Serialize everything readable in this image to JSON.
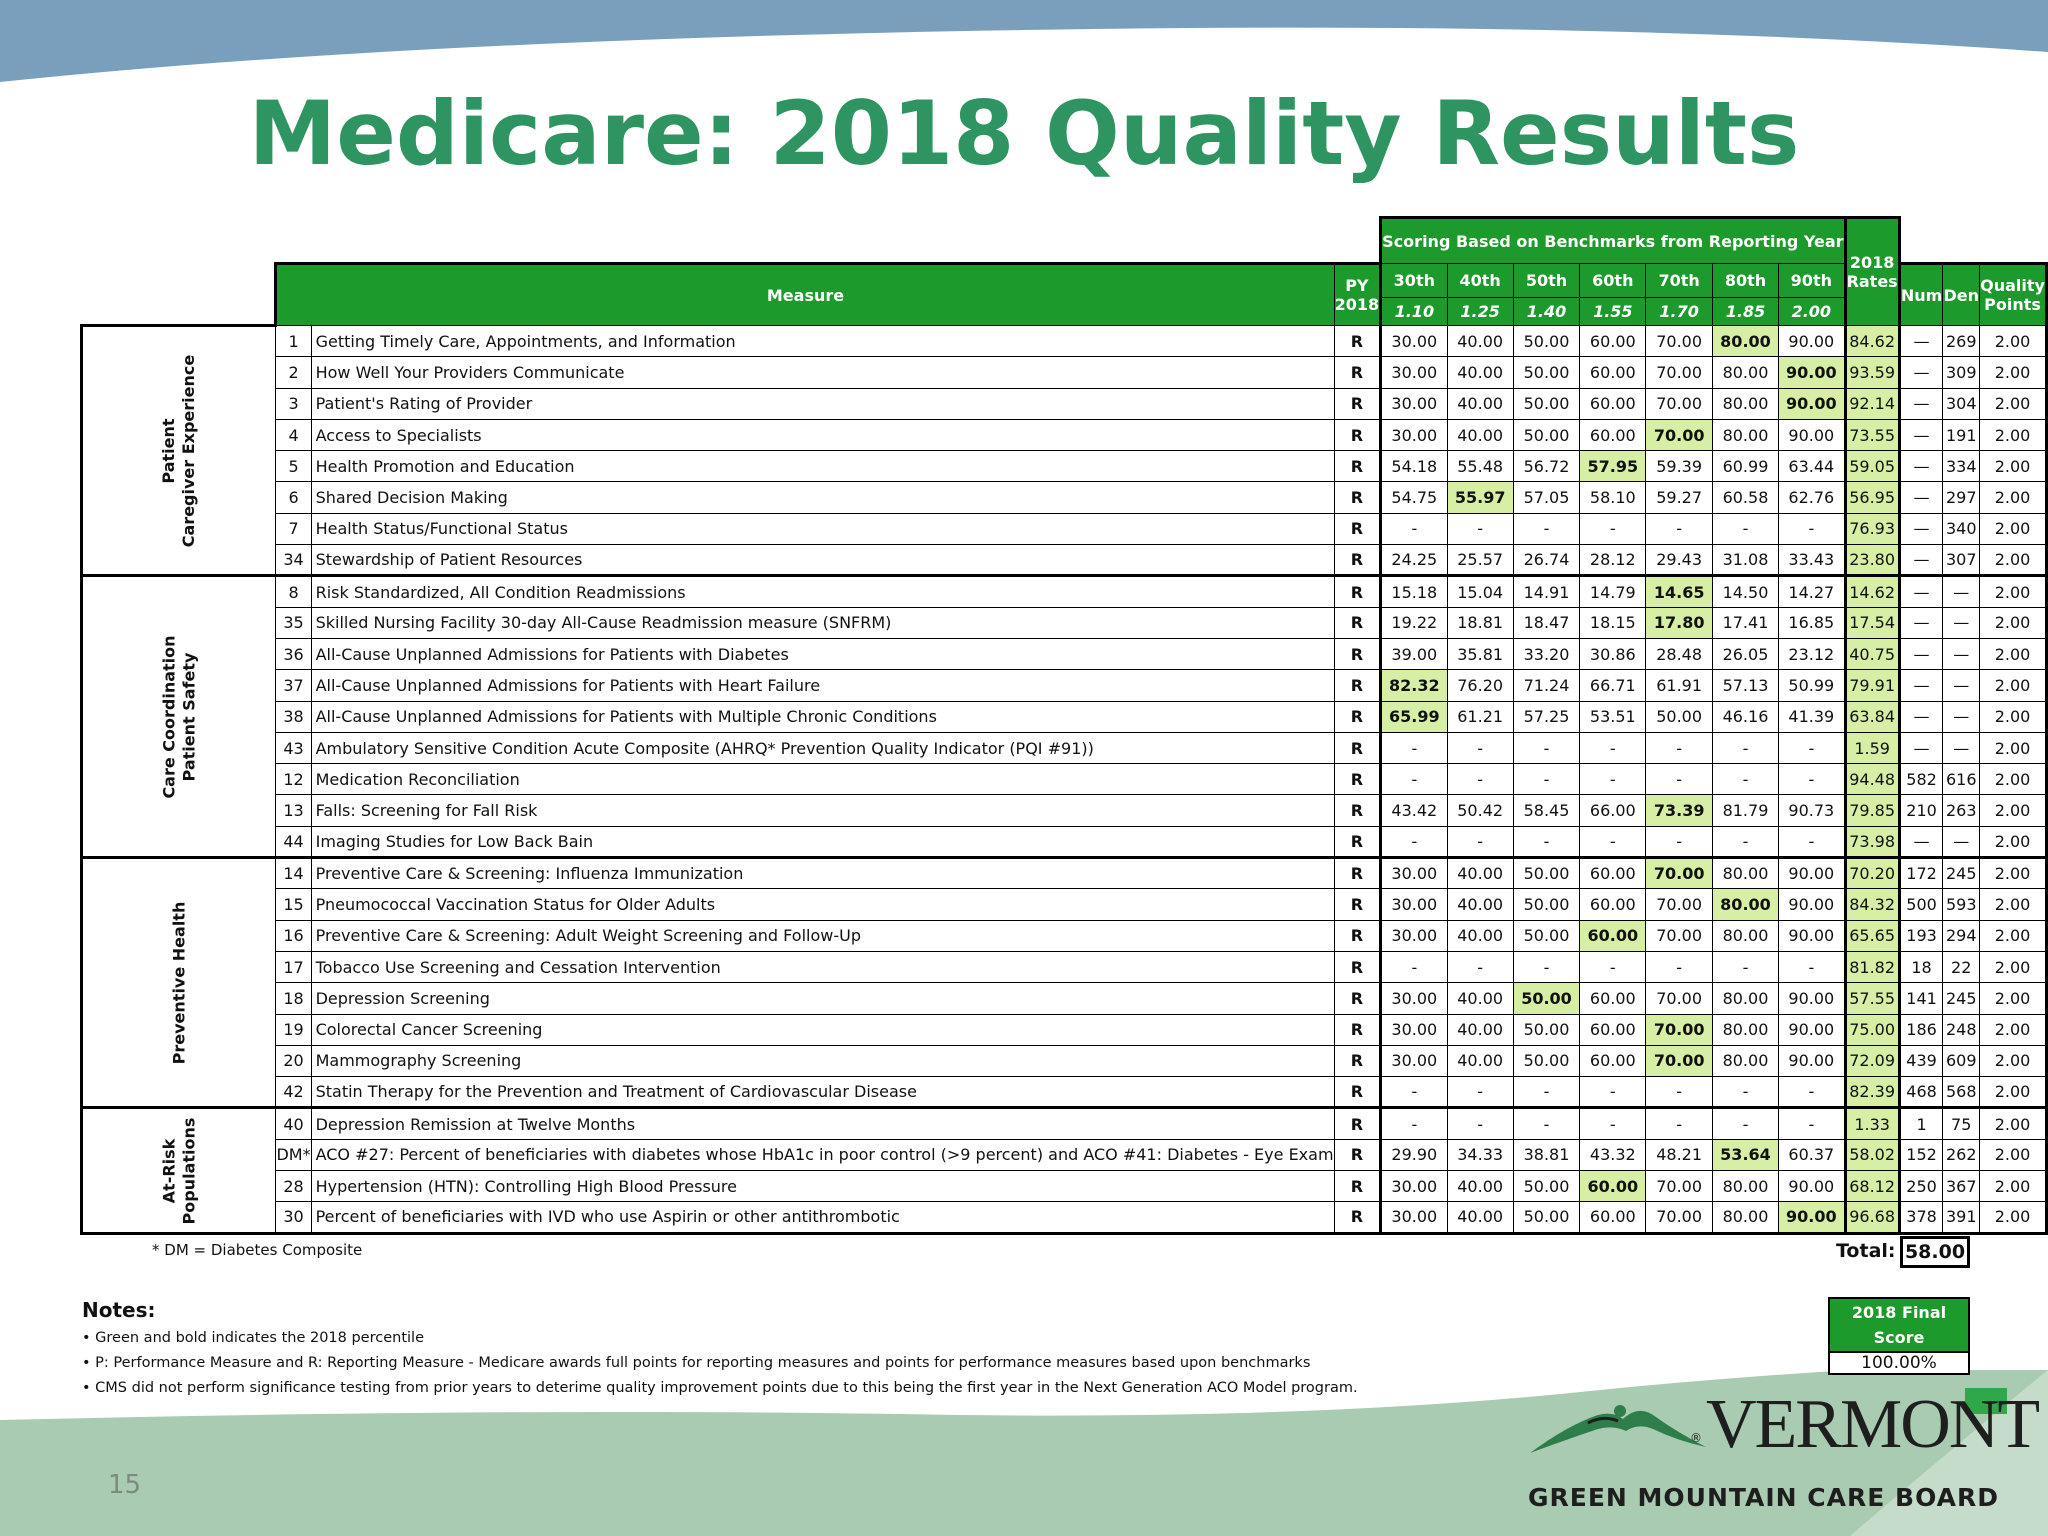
{
  "slide": {
    "title": "Medicare: 2018 Quality Results",
    "page_number": "15"
  },
  "table": {
    "headers": {
      "measure": "Measure",
      "py_line1": "PY",
      "py_line2": "2018",
      "scoring_group": "Scoring Based on Benchmarks from Reporting Year",
      "percentiles": [
        "30th",
        "40th",
        "50th",
        "60th",
        "70th",
        "80th",
        "90th"
      ],
      "points": [
        "1.10",
        "1.25",
        "1.40",
        "1.55",
        "1.70",
        "1.85",
        "2.00"
      ],
      "rates_line1": "2018",
      "rates_line2": "Rates",
      "num": "Num",
      "den": "Den",
      "qp_line1": "Quality",
      "qp_line2": "Points"
    },
    "categories": {
      "patient_line1": "Patient",
      "patient_line2": "Caregiver Experience",
      "care_line1": "Care Coordination",
      "care_line2": "Patient Safety",
      "preventive": "Preventive Health",
      "atrisk_line1": "At-Risk",
      "atrisk_line2": "Populations"
    },
    "rows": [
      {
        "num": "1",
        "name": "Getting Timely Care, Appointments, and Information",
        "py": "R",
        "bench": [
          "30.00",
          "40.00",
          "50.00",
          "60.00",
          "70.00",
          "80.00",
          "90.00"
        ],
        "hl": 5,
        "rate": "84.62",
        "n": "—",
        "d": "269",
        "qp": "2.00"
      },
      {
        "num": "2",
        "name": "How Well Your Providers Communicate",
        "py": "R",
        "bench": [
          "30.00",
          "40.00",
          "50.00",
          "60.00",
          "70.00",
          "80.00",
          "90.00"
        ],
        "hl": 6,
        "rate": "93.59",
        "n": "—",
        "d": "309",
        "qp": "2.00"
      },
      {
        "num": "3",
        "name": "Patient's Rating of Provider",
        "py": "R",
        "bench": [
          "30.00",
          "40.00",
          "50.00",
          "60.00",
          "70.00",
          "80.00",
          "90.00"
        ],
        "hl": 6,
        "rate": "92.14",
        "n": "—",
        "d": "304",
        "qp": "2.00"
      },
      {
        "num": "4",
        "name": "Access to Specialists",
        "py": "R",
        "bench": [
          "30.00",
          "40.00",
          "50.00",
          "60.00",
          "70.00",
          "80.00",
          "90.00"
        ],
        "hl": 4,
        "rate": "73.55",
        "n": "—",
        "d": "191",
        "qp": "2.00"
      },
      {
        "num": "5",
        "name": "Health Promotion and Education",
        "py": "R",
        "bench": [
          "54.18",
          "55.48",
          "56.72",
          "57.95",
          "59.39",
          "60.99",
          "63.44"
        ],
        "hl": 3,
        "rate": "59.05",
        "n": "—",
        "d": "334",
        "qp": "2.00"
      },
      {
        "num": "6",
        "name": "Shared Decision Making",
        "py": "R",
        "bench": [
          "54.75",
          "55.97",
          "57.05",
          "58.10",
          "59.27",
          "60.58",
          "62.76"
        ],
        "hl": 1,
        "rate": "56.95",
        "n": "—",
        "d": "297",
        "qp": "2.00"
      },
      {
        "num": "7",
        "name": "Health Status/Functional Status",
        "py": "R",
        "bench": [
          "-",
          "-",
          "-",
          "-",
          "-",
          "-",
          "-"
        ],
        "hl": -1,
        "rate": "76.93",
        "n": "—",
        "d": "340",
        "qp": "2.00"
      },
      {
        "num": "34",
        "name": "Stewardship of Patient Resources",
        "py": "R",
        "bench": [
          "24.25",
          "25.57",
          "26.74",
          "28.12",
          "29.43",
          "31.08",
          "33.43"
        ],
        "hl": -1,
        "rate": "23.80",
        "n": "—",
        "d": "307",
        "qp": "2.00"
      },
      {
        "num": "8",
        "name": "Risk Standardized, All Condition Readmissions",
        "py": "R",
        "bench": [
          "15.18",
          "15.04",
          "14.91",
          "14.79",
          "14.65",
          "14.50",
          "14.27"
        ],
        "hl": 4,
        "rate": "14.62",
        "n": "—",
        "d": "—",
        "qp": "2.00"
      },
      {
        "num": "35",
        "name": "Skilled Nursing Facility 30-day All-Cause Readmission measure (SNFRM)",
        "py": "R",
        "bench": [
          "19.22",
          "18.81",
          "18.47",
          "18.15",
          "17.80",
          "17.41",
          "16.85"
        ],
        "hl": 4,
        "rate": "17.54",
        "n": "—",
        "d": "—",
        "qp": "2.00"
      },
      {
        "num": "36",
        "name": "All-Cause Unplanned Admissions for Patients with Diabetes",
        "py": "R",
        "bench": [
          "39.00",
          "35.81",
          "33.20",
          "30.86",
          "28.48",
          "26.05",
          "23.12"
        ],
        "hl": -1,
        "rate": "40.75",
        "n": "—",
        "d": "—",
        "qp": "2.00"
      },
      {
        "num": "37",
        "name": "All-Cause Unplanned Admissions for Patients with Heart Failure",
        "py": "R",
        "bench": [
          "82.32",
          "76.20",
          "71.24",
          "66.71",
          "61.91",
          "57.13",
          "50.99"
        ],
        "hl": 0,
        "rate": "79.91",
        "n": "—",
        "d": "—",
        "qp": "2.00"
      },
      {
        "num": "38",
        "name": "All-Cause Unplanned Admissions for Patients with Multiple Chronic Conditions",
        "py": "R",
        "bench": [
          "65.99",
          "61.21",
          "57.25",
          "53.51",
          "50.00",
          "46.16",
          "41.39"
        ],
        "hl": 0,
        "rate": "63.84",
        "n": "—",
        "d": "—",
        "qp": "2.00"
      },
      {
        "num": "43",
        "name": "Ambulatory Sensitive Condition Acute Composite (AHRQ* Prevention Quality Indicator (PQI #91))",
        "py": "R",
        "bench": [
          "-",
          "-",
          "-",
          "-",
          "-",
          "-",
          "-"
        ],
        "hl": -1,
        "rate": "1.59",
        "n": "—",
        "d": "—",
        "qp": "2.00"
      },
      {
        "num": "12",
        "name": "Medication Reconciliation",
        "py": "R",
        "bench": [
          "-",
          "-",
          "-",
          "-",
          "-",
          "-",
          "-"
        ],
        "hl": -1,
        "rate": "94.48",
        "n": "582",
        "d": "616",
        "qp": "2.00"
      },
      {
        "num": "13",
        "name": "Falls: Screening for Fall Risk",
        "py": "R",
        "bench": [
          "43.42",
          "50.42",
          "58.45",
          "66.00",
          "73.39",
          "81.79",
          "90.73"
        ],
        "hl": 4,
        "rate": "79.85",
        "n": "210",
        "d": "263",
        "qp": "2.00"
      },
      {
        "num": "44",
        "name": " Imaging Studies for Low Back Bain",
        "py": "R",
        "bench": [
          "-",
          "-",
          "-",
          "-",
          "-",
          "-",
          "-"
        ],
        "hl": -1,
        "rate": "73.98",
        "n": "—",
        "d": "—",
        "qp": "2.00"
      },
      {
        "num": "14",
        "name": "Preventive Care & Screening: Influenza Immunization",
        "py": "R",
        "bench": [
          "30.00",
          "40.00",
          "50.00",
          "60.00",
          "70.00",
          "80.00",
          "90.00"
        ],
        "hl": 4,
        "rate": "70.20",
        "n": "172",
        "d": "245",
        "qp": "2.00"
      },
      {
        "num": "15",
        "name": "Pneumococcal Vaccination Status for Older Adults",
        "py": "R",
        "bench": [
          "30.00",
          "40.00",
          "50.00",
          "60.00",
          "70.00",
          "80.00",
          "90.00"
        ],
        "hl": 5,
        "rate": "84.32",
        "n": "500",
        "d": "593",
        "qp": "2.00"
      },
      {
        "num": "16",
        "name": "Preventive Care & Screening: Adult Weight Screening and Follow-Up",
        "py": "R",
        "bench": [
          "30.00",
          "40.00",
          "50.00",
          "60.00",
          "70.00",
          "80.00",
          "90.00"
        ],
        "hl": 3,
        "rate": "65.65",
        "n": "193",
        "d": "294",
        "qp": "2.00"
      },
      {
        "num": "17",
        "name": "Tobacco Use Screening and Cessation Intervention",
        "py": "R",
        "bench": [
          "-",
          "-",
          "-",
          "-",
          "-",
          "-",
          "-"
        ],
        "hl": -1,
        "rate": "81.82",
        "n": "18",
        "d": "22",
        "qp": "2.00"
      },
      {
        "num": "18",
        "name": "Depression  Screening",
        "py": "R",
        "bench": [
          "30.00",
          "40.00",
          "50.00",
          "60.00",
          "70.00",
          "80.00",
          "90.00"
        ],
        "hl": 2,
        "rate": "57.55",
        "n": "141",
        "d": "245",
        "qp": "2.00"
      },
      {
        "num": "19",
        "name": "Colorectal Cancer Screening",
        "py": "R",
        "bench": [
          "30.00",
          "40.00",
          "50.00",
          "60.00",
          "70.00",
          "80.00",
          "90.00"
        ],
        "hl": 4,
        "rate": "75.00",
        "n": "186",
        "d": "248",
        "qp": "2.00"
      },
      {
        "num": "20",
        "name": "Mammography Screening",
        "py": "R",
        "bench": [
          "30.00",
          "40.00",
          "50.00",
          "60.00",
          "70.00",
          "80.00",
          "90.00"
        ],
        "hl": 4,
        "rate": "72.09",
        "n": "439",
        "d": "609",
        "qp": "2.00"
      },
      {
        "num": "42",
        "name": "Statin Therapy for the Prevention and Treatment of Cardiovascular Disease",
        "py": "R",
        "bench": [
          "-",
          "-",
          "-",
          "-",
          "-",
          "-",
          "-"
        ],
        "hl": -1,
        "rate": "82.39",
        "n": "468",
        "d": "568",
        "qp": "2.00"
      },
      {
        "num": "40",
        "name": "Depression Remission at Twelve Months",
        "py": "R",
        "bench": [
          "-",
          "-",
          "-",
          "-",
          "-",
          "-",
          "-"
        ],
        "hl": -1,
        "rate": "1.33",
        "n": "1",
        "d": "75",
        "qp": "2.00"
      },
      {
        "num": "DM*",
        "name": "ACO #27: Percent of beneficiaries with diabetes whose HbA1c in poor control (>9 percent) and ACO #41: Diabetes - Eye Exam",
        "py": "R",
        "bench": [
          "29.90",
          "34.33",
          "38.81",
          "43.32",
          "48.21",
          "53.64",
          "60.37"
        ],
        "hl": 5,
        "rate": "58.02",
        "n": "152",
        "d": "262",
        "qp": "2.00"
      },
      {
        "num": "28",
        "name": "Hypertension (HTN): Controlling High Blood Pressure",
        "py": "R",
        "bench": [
          "30.00",
          "40.00",
          "50.00",
          "60.00",
          "70.00",
          "80.00",
          "90.00"
        ],
        "hl": 3,
        "rate": "68.12",
        "n": "250",
        "d": "367",
        "qp": "2.00"
      },
      {
        "num": "30",
        "name": "Percent of beneficiaries with IVD who use Aspirin or other antithrombotic",
        "py": "R",
        "bench": [
          "30.00",
          "40.00",
          "50.00",
          "60.00",
          "70.00",
          "80.00",
          "90.00"
        ],
        "hl": 6,
        "rate": "96.68",
        "n": "378",
        "d": "391",
        "qp": "2.00"
      }
    ],
    "footnote": "* DM = Diabetes Composite",
    "total_label": "Total:",
    "total_value": "58.00"
  },
  "notes": {
    "title": "Notes:",
    "items": [
      "• Green and bold indicates the 2018 percentile",
      "• P:  Performance Measure and R: Reporting Measure - Medicare awards full points for reporting measures and points for performance measures based upon benchmarks",
      "• CMS did not perform significance testing from prior years to deterime quality improvement points due to this being the first year in the Next Generation ACO Model program."
    ]
  },
  "final_score": {
    "label": "2018 Final Score",
    "value": "100.00%"
  },
  "logo": {
    "word": "VERMONT",
    "reg": "®",
    "subtitle": "GREEN MOUNTAIN CARE BOARD"
  },
  "colors": {
    "title_green": "#2e9461",
    "header_green": "#1d9a2c",
    "highlight_green": "#d7efa4",
    "top_band": "#7a9fbd",
    "bottom_band": "#a9cbb2"
  }
}
